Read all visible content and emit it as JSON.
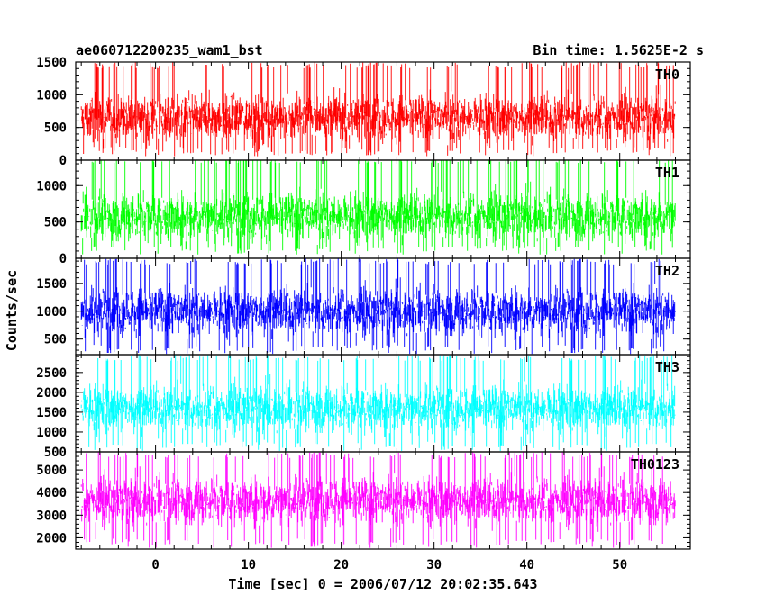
{
  "chart_data": {
    "type": "line",
    "title": "ae060712200235_wam1_bst",
    "subtitle": "Bin time: 1.5625E-2 s",
    "xlabel": "Time [sec] 0 = 2006/07/12 20:02:35.643",
    "ylabel": "Counts/sec",
    "xlim": [
      -8.6,
      57.6
    ],
    "x_ticks": [
      0,
      10,
      20,
      30,
      40,
      50
    ],
    "x_range_data": [
      -8.0,
      56.0
    ],
    "grid": false,
    "series": [
      {
        "name": "TH0",
        "color": "#ff0000",
        "ylim": [
          0,
          1500
        ],
        "y_ticks": [
          0,
          500,
          1000,
          1500
        ],
        "mean": 650,
        "min": 60,
        "max": 1500
      },
      {
        "name": "TH1",
        "color": "#00ff00",
        "ylim": [
          0,
          1350
        ],
        "y_ticks": [
          0,
          500,
          1000
        ],
        "mean": 580,
        "min": 50,
        "max": 1400
      },
      {
        "name": "TH2",
        "color": "#0000ff",
        "ylim": [
          220,
          1950
        ],
        "y_ticks": [
          500,
          1000,
          1500
        ],
        "mean": 1000,
        "min": 230,
        "max": 1950
      },
      {
        "name": "TH3",
        "color": "#00ffff",
        "ylim": [
          500,
          2950
        ],
        "y_ticks": [
          500,
          1000,
          1500,
          2000,
          2500
        ],
        "mean": 1600,
        "min": 520,
        "max": 2950
      },
      {
        "name": "TH0123",
        "color": "#ff00ff",
        "ylim": [
          1500,
          5800
        ],
        "y_ticks": [
          2000,
          3000,
          4000,
          5000
        ],
        "mean": 3650,
        "min": 1550,
        "max": 5800
      }
    ]
  }
}
